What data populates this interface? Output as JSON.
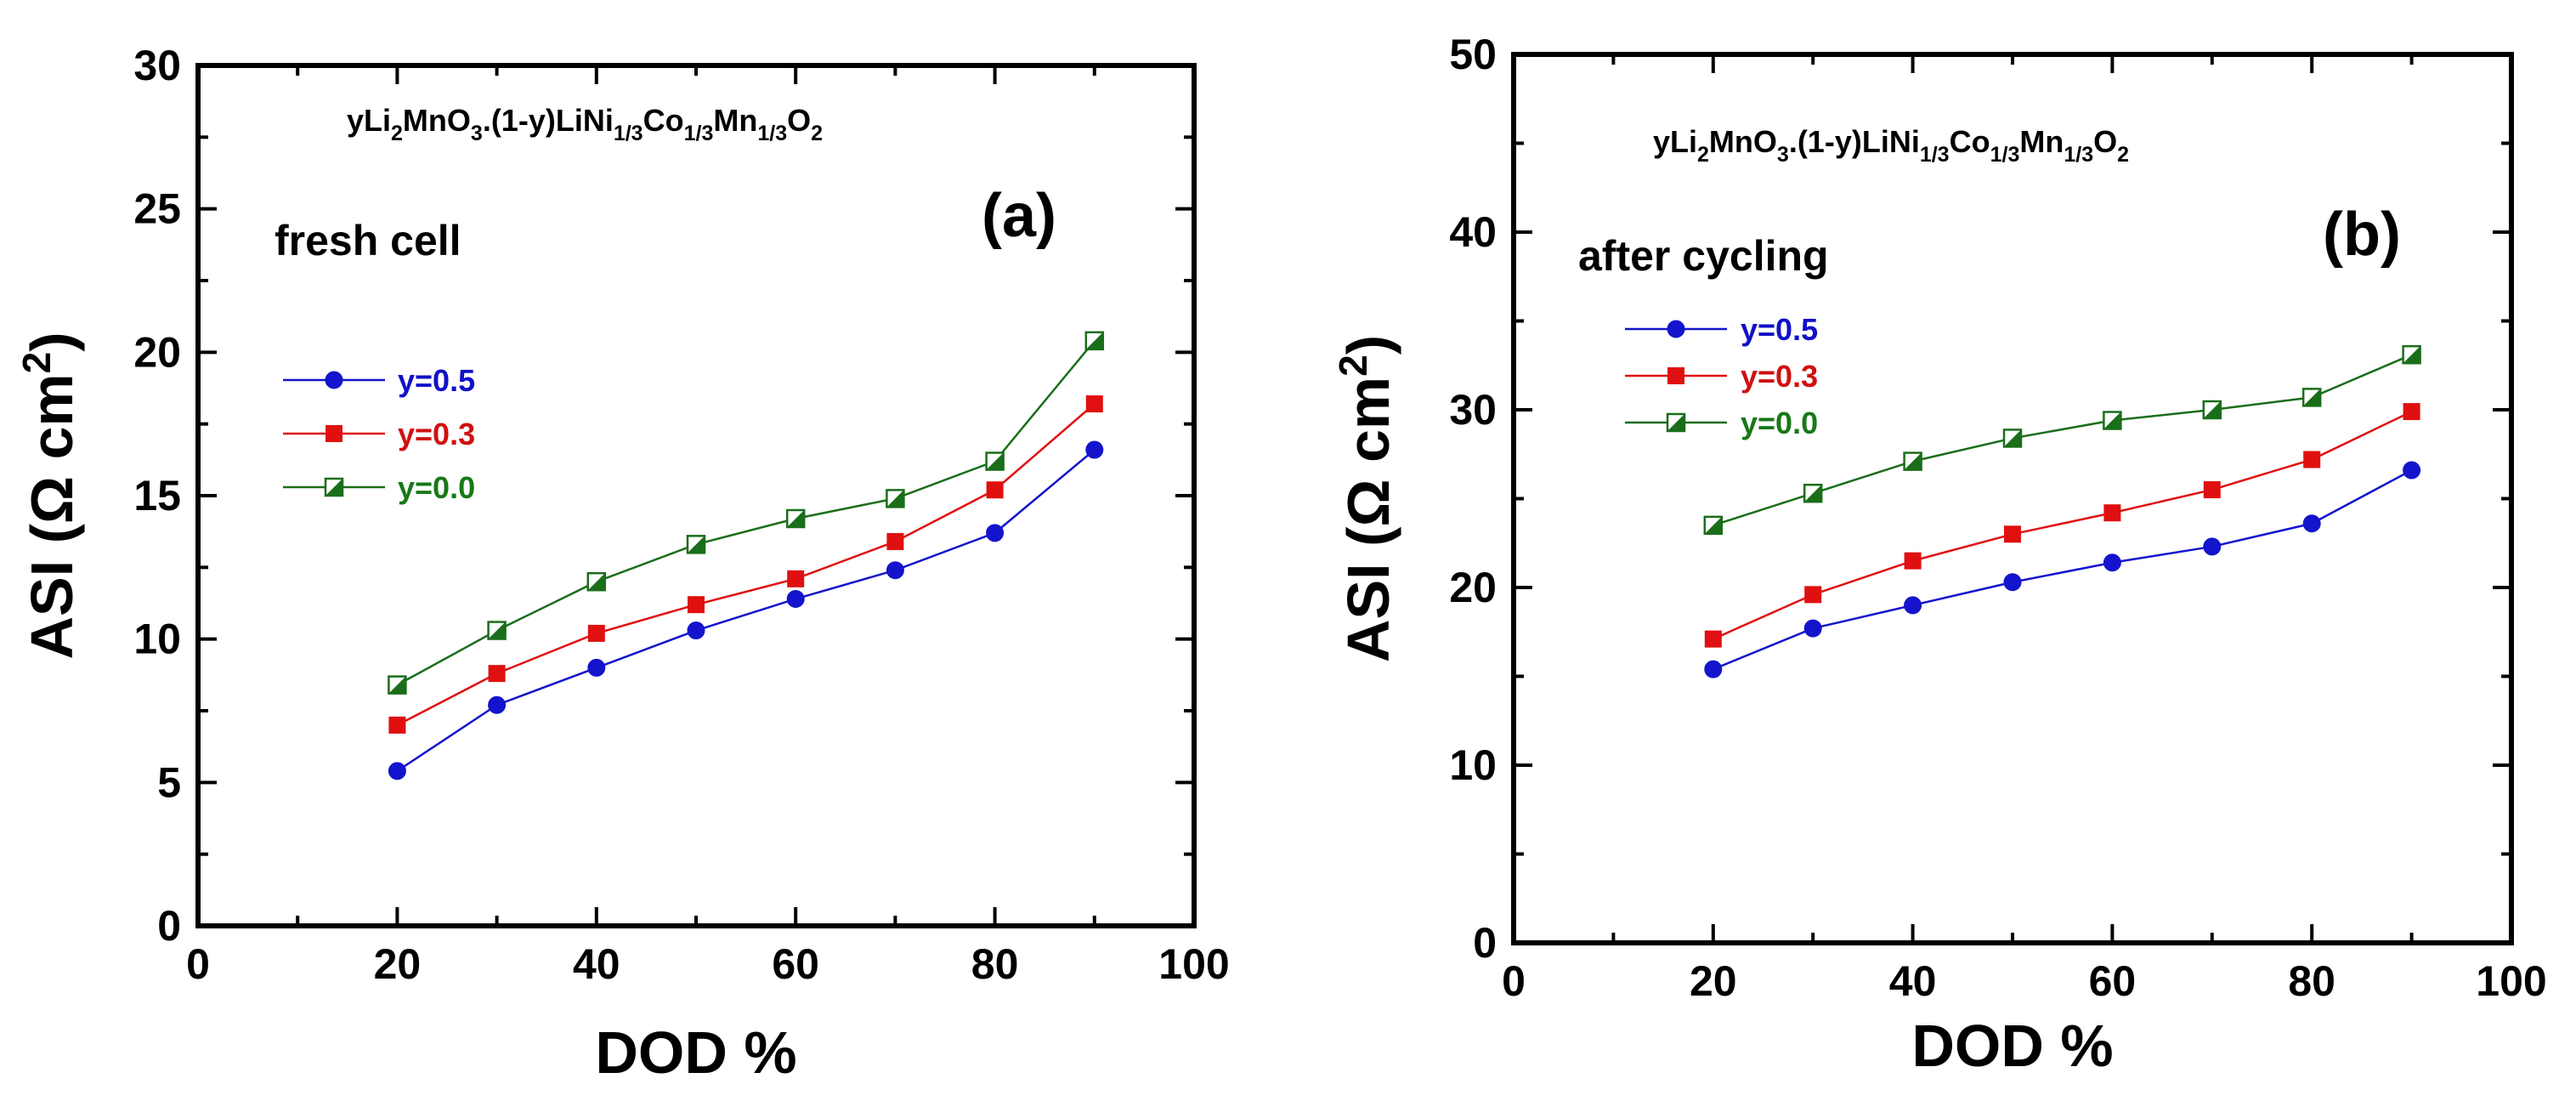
{
  "chart_data": [
    {
      "type": "line",
      "panel_label": "(a)",
      "formula": {
        "parts": [
          {
            "t": "yLi"
          },
          {
            "t": "2",
            "sub": true
          },
          {
            "t": "MnO"
          },
          {
            "t": "3",
            "sub": true
          },
          {
            "t": ".(1-y)LiNi"
          },
          {
            "t": "1/3",
            "sub": true
          },
          {
            "t": "Co"
          },
          {
            "t": "1/3",
            "sub": true
          },
          {
            "t": "Mn"
          },
          {
            "t": "1/3",
            "sub": true
          },
          {
            "t": "O"
          },
          {
            "t": "2",
            "sub": true
          }
        ]
      },
      "annotation": "fresh cell",
      "xlabel": "DOD %",
      "ylabel": {
        "prefix": "ASI (Ω cm",
        "sup": "2",
        "suffix": ")"
      },
      "xlim": [
        0,
        100
      ],
      "ylim": [
        0,
        30
      ],
      "xticks": [
        0,
        20,
        40,
        60,
        80,
        100
      ],
      "yticks": [
        0,
        5,
        10,
        15,
        20,
        25,
        30
      ],
      "x": [
        20,
        30,
        40,
        50,
        60,
        70,
        80,
        90
      ],
      "series": [
        {
          "name": "y=0.5",
          "marker": "circle",
          "color": "#1414cc",
          "label_color": "#1010c8",
          "values": [
            5.4,
            7.7,
            9.0,
            10.3,
            11.4,
            12.4,
            13.7,
            16.6
          ]
        },
        {
          "name": "y=0.3",
          "marker": "square",
          "color": "#e01010",
          "label_color": "#d01010",
          "values": [
            7.0,
            8.8,
            10.2,
            11.2,
            12.1,
            13.4,
            15.2,
            18.2
          ]
        },
        {
          "name": "y=0.0",
          "marker": "half-square",
          "color": "#1a6e1a",
          "label_color": "#187818",
          "values": [
            8.4,
            10.3,
            12.0,
            13.3,
            14.2,
            14.9,
            16.2,
            20.4
          ]
        }
      ]
    },
    {
      "type": "line",
      "panel_label": "(b)",
      "formula": {
        "parts": [
          {
            "t": "yLi"
          },
          {
            "t": "2",
            "sub": true
          },
          {
            "t": "MnO"
          },
          {
            "t": "3",
            "sub": true
          },
          {
            "t": ".(1-y)LiNi"
          },
          {
            "t": "1/3",
            "sub": true
          },
          {
            "t": "Co"
          },
          {
            "t": "1/3",
            "sub": true
          },
          {
            "t": "Mn"
          },
          {
            "t": "1/3",
            "sub": true
          },
          {
            "t": "O"
          },
          {
            "t": "2",
            "sub": true
          }
        ]
      },
      "annotation": "after cycling",
      "xlabel": "DOD %",
      "ylabel": {
        "prefix": "ASI (Ω cm",
        "sup": "2",
        "suffix": ")"
      },
      "xlim": [
        0,
        100
      ],
      "ylim": [
        0,
        50
      ],
      "xticks": [
        0,
        20,
        40,
        60,
        80,
        100
      ],
      "yticks": [
        0,
        10,
        20,
        30,
        40,
        50
      ],
      "x": [
        20,
        30,
        40,
        50,
        60,
        70,
        80,
        90
      ],
      "series": [
        {
          "name": "y=0.5",
          "marker": "circle",
          "color": "#1414cc",
          "label_color": "#1010c8",
          "values": [
            15.4,
            17.7,
            19.0,
            20.3,
            21.4,
            22.3,
            23.6,
            26.6
          ]
        },
        {
          "name": "y=0.3",
          "marker": "square",
          "color": "#e01010",
          "label_color": "#d01010",
          "values": [
            17.1,
            19.6,
            21.5,
            23.0,
            24.2,
            25.5,
            27.2,
            29.9
          ]
        },
        {
          "name": "y=0.0",
          "marker": "half-square",
          "color": "#1a6e1a",
          "label_color": "#187818",
          "values": [
            23.5,
            25.3,
            27.1,
            28.4,
            29.4,
            30.0,
            30.7,
            33.1
          ]
        }
      ]
    }
  ]
}
